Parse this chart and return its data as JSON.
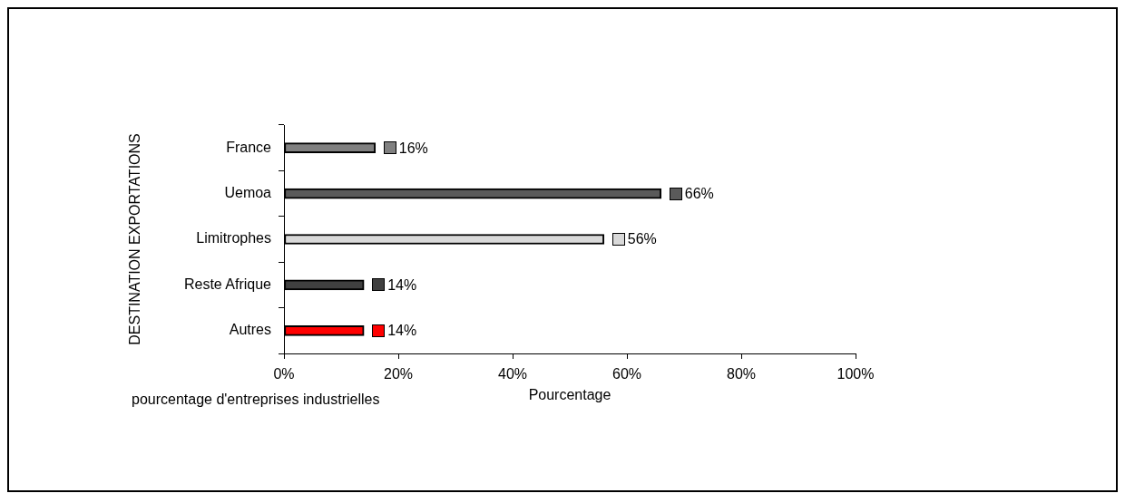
{
  "chart_data": {
    "type": "bar",
    "orientation": "horizontal",
    "xlabel": "Pourcentage",
    "ylabel": "DESTINATION EXPORTATIONS",
    "categories": [
      "France",
      "Uemoa",
      "Limitrophes",
      "Reste Afrique",
      "Autres"
    ],
    "values": [
      16,
      66,
      56,
      14,
      14
    ],
    "colors": [
      "#808080",
      "#5a5a5a",
      "#d9d9d9",
      "#404040",
      "#ff0000"
    ],
    "value_labels": [
      "16%",
      "66%",
      "56%",
      "14%",
      "14%"
    ],
    "xlim": [
      0,
      100
    ],
    "xticks": [
      {
        "value": 0,
        "label": "0%"
      },
      {
        "value": 20,
        "label": "20%"
      },
      {
        "value": 40,
        "label": "40%"
      },
      {
        "value": 60,
        "label": "60%"
      },
      {
        "value": 80,
        "label": "80%"
      },
      {
        "value": 100,
        "label": "100%"
      }
    ],
    "grid": false,
    "legend": false,
    "annotations": [
      "pourcentage d'entreprises industrielles"
    ]
  }
}
